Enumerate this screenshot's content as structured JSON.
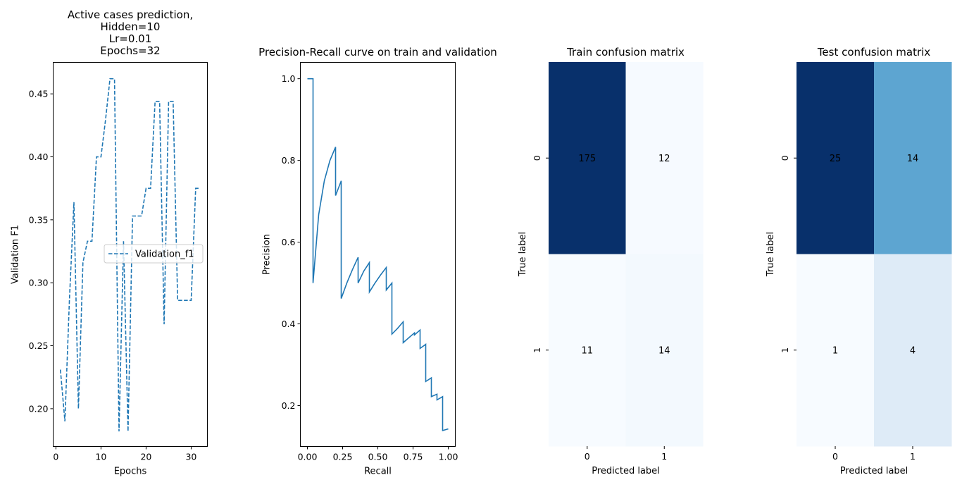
{
  "chart_data": [
    {
      "type": "line",
      "title": "Active cases prediction,\nHidden=10\nLr=0.01\nEpochs=32",
      "xlabel": "Epochs",
      "ylabel": "Validation F1",
      "xlim": [
        -0.6,
        33.6
      ],
      "ylim": [
        0.17,
        0.475
      ],
      "xticks": [
        0,
        10,
        20,
        30
      ],
      "yticks": [
        0.2,
        0.25,
        0.3,
        0.35,
        0.4,
        0.45
      ],
      "legend": "center-right",
      "series": [
        {
          "name": "Validation_f1",
          "style": "dashed",
          "color": "#1f77b4",
          "x": [
            1,
            2,
            3,
            4,
            5,
            6,
            7,
            8,
            9,
            10,
            11,
            12,
            13,
            14,
            15,
            16,
            17,
            18,
            19,
            20,
            21,
            22,
            23,
            24,
            25,
            26,
            27,
            28,
            29,
            30,
            31,
            32
          ],
          "y": [
            0.231,
            0.19,
            0.286,
            0.364,
            0.2,
            0.316,
            0.333,
            0.333,
            0.4,
            0.4,
            0.429,
            0.462,
            0.462,
            0.182,
            0.333,
            0.182,
            0.353,
            0.353,
            0.353,
            0.375,
            0.375,
            0.444,
            0.444,
            0.267,
            0.444,
            0.444,
            0.286,
            0.286,
            0.286,
            0.286,
            0.375,
            0.375
          ]
        }
      ]
    },
    {
      "type": "line",
      "title": "Precision-Recall curve on train and validation",
      "xlabel": "Recall",
      "ylabel": "Precision",
      "xlim": [
        -0.05,
        1.05
      ],
      "ylim": [
        0.1,
        1.04
      ],
      "xticks": [
        0.0,
        0.25,
        0.5,
        0.75,
        1.0
      ],
      "yticks": [
        0.2,
        0.4,
        0.6,
        0.8,
        1.0
      ],
      "series": [
        {
          "color": "#1f77b4",
          "x": [
            0.0,
            0.04,
            0.04,
            0.08,
            0.12,
            0.16,
            0.2,
            0.2,
            0.24,
            0.24,
            0.28,
            0.32,
            0.36,
            0.36,
            0.4,
            0.44,
            0.44,
            0.48,
            0.52,
            0.56,
            0.56,
            0.6,
            0.6,
            0.64,
            0.68,
            0.68,
            0.72,
            0.76,
            0.76,
            0.8,
            0.8,
            0.84,
            0.84,
            0.88,
            0.88,
            0.92,
            0.92,
            0.96,
            0.96,
            1.0
          ],
          "y": [
            1.0,
            1.0,
            0.5,
            0.667,
            0.75,
            0.8,
            0.833,
            0.714,
            0.75,
            0.462,
            0.5,
            0.533,
            0.563,
            0.5,
            0.529,
            0.55,
            0.478,
            0.5,
            0.52,
            0.538,
            0.483,
            0.5,
            0.375,
            0.389,
            0.405,
            0.354,
            0.366,
            0.378,
            0.373,
            0.385,
            0.34,
            0.35,
            0.259,
            0.268,
            0.222,
            0.228,
            0.214,
            0.222,
            0.139,
            0.143
          ]
        }
      ]
    },
    {
      "type": "heatmap",
      "title": "Train confusion matrix",
      "xlabel": "Predicted label",
      "ylabel": "True label",
      "xticks": [
        "0",
        "1"
      ],
      "yticks": [
        "0",
        "1"
      ],
      "values": [
        [
          175,
          12
        ],
        [
          11,
          14
        ]
      ],
      "colormap": "Blues"
    },
    {
      "type": "heatmap",
      "title": "Test confusion matrix",
      "xlabel": "Predicted label",
      "ylabel": "True label",
      "xticks": [
        "0",
        "1"
      ],
      "yticks": [
        "0",
        "1"
      ],
      "values": [
        [
          25,
          14
        ],
        [
          1,
          4
        ]
      ],
      "colormap": "Blues"
    }
  ]
}
